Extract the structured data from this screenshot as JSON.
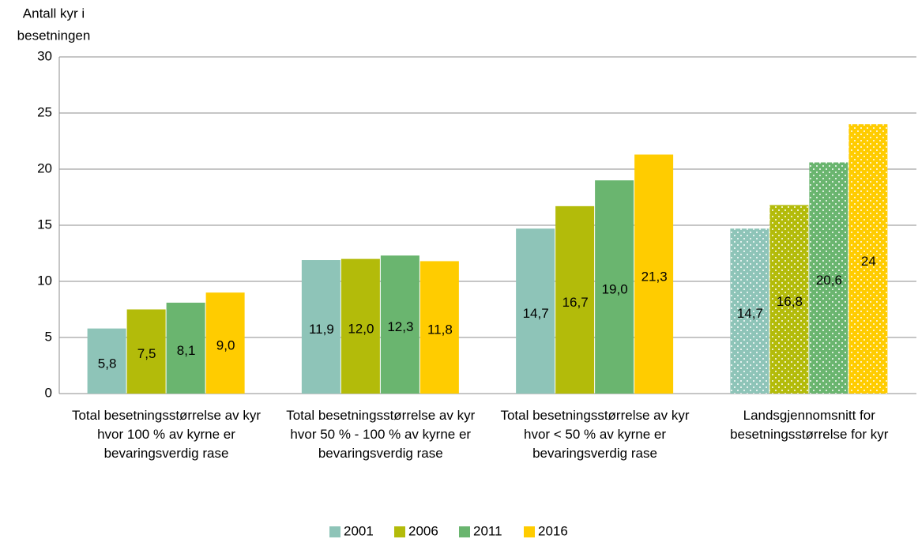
{
  "chart_data": {
    "type": "bar",
    "y_label": [
      "Antall kyr i",
      "besetningen"
    ],
    "categories": [
      "Total besetningsstørrelse av kyr hvor 100 % av kyrne er bevaringsverdig rase",
      "Total besetningsstørrelse av kyr hvor 50 % - 100 % av kyrne er bevaringsverdig rase",
      "Total besetningsstørrelse av kyr hvor < 50 % av kyrne er bevaringsverdig rase",
      "Landsgjennomsnitt for besetningsstørrelse for kyr"
    ],
    "category_patterns": [
      "solid",
      "solid",
      "solid",
      "dots"
    ],
    "series": [
      {
        "name": "2001",
        "color": "#8ec4b8",
        "values": [
          5.8,
          11.9,
          14.7,
          14.7
        ],
        "value_labels": [
          "5,8",
          "11,9",
          "14,7",
          "14,7"
        ]
      },
      {
        "name": "2006",
        "color": "#b3bb0a",
        "values": [
          7.5,
          12.0,
          16.7,
          16.8
        ],
        "value_labels": [
          "7,5",
          "12,0",
          "16,7",
          "16,8"
        ]
      },
      {
        "name": "2011",
        "color": "#6ab56f",
        "values": [
          8.1,
          12.3,
          19.0,
          20.6
        ],
        "value_labels": [
          "8,1",
          "12,3",
          "19,0",
          "20,6"
        ]
      },
      {
        "name": "2016",
        "color": "#ffcc00",
        "values": [
          9.0,
          11.8,
          21.3,
          24
        ],
        "value_labels": [
          "9,0",
          "11,8",
          "21,3",
          "24"
        ]
      }
    ],
    "ylim": [
      0,
      30
    ],
    "yticks": [
      0,
      5,
      10,
      15,
      20,
      25,
      30
    ],
    "grid": true,
    "legend": "bottom"
  }
}
